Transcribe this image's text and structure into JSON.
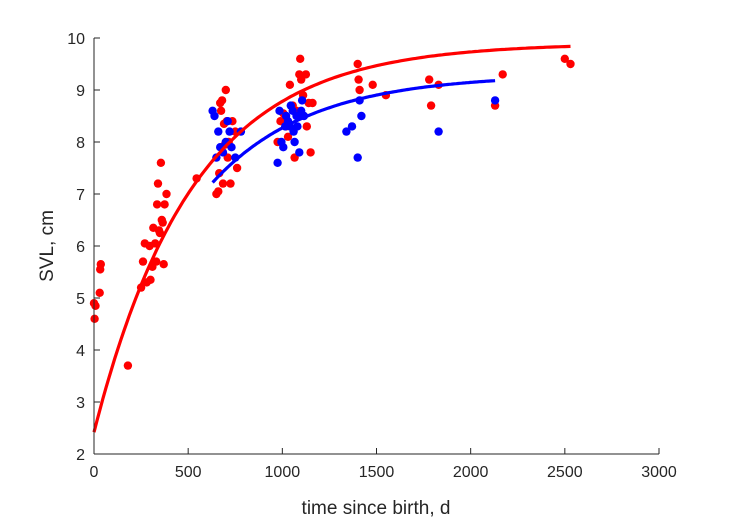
{
  "chart_data": {
    "type": "scatter",
    "xlabel": "time since birth, d",
    "ylabel": "SVL, cm",
    "xlim": [
      0,
      3000
    ],
    "ylim": [
      2,
      10
    ],
    "xticks": [
      "0",
      "500",
      "1000",
      "1500",
      "2000",
      "2500",
      "3000"
    ],
    "yticks": [
      "2",
      "3",
      "4",
      "5",
      "6",
      "7",
      "8",
      "9",
      "10"
    ],
    "grid": false,
    "legend": "none",
    "colors": {
      "red": "#ff0000",
      "blue": "#0000ff",
      "axis": "#262626"
    },
    "series": [
      {
        "color": "#ff0000",
        "kind": "points",
        "points": [
          [
            0,
            4.9
          ],
          [
            3,
            4.6
          ],
          [
            8,
            4.85
          ],
          [
            30,
            5.1
          ],
          [
            33,
            5.55
          ],
          [
            36,
            5.65
          ],
          [
            180,
            3.7
          ],
          [
            250,
            5.2
          ],
          [
            260,
            5.7
          ],
          [
            270,
            6.05
          ],
          [
            280,
            5.3
          ],
          [
            295,
            6.0
          ],
          [
            300,
            5.35
          ],
          [
            310,
            5.6
          ],
          [
            315,
            6.35
          ],
          [
            325,
            6.05
          ],
          [
            330,
            5.7
          ],
          [
            335,
            6.8
          ],
          [
            340,
            7.2
          ],
          [
            345,
            6.3
          ],
          [
            350,
            6.25
          ],
          [
            355,
            7.6
          ],
          [
            360,
            6.5
          ],
          [
            365,
            6.45
          ],
          [
            370,
            5.65
          ],
          [
            375,
            6.8
          ],
          [
            385,
            7.0
          ],
          [
            545,
            7.3
          ],
          [
            650,
            7.0
          ],
          [
            660,
            7.05
          ],
          [
            665,
            7.4
          ],
          [
            670,
            8.75
          ],
          [
            675,
            8.6
          ],
          [
            680,
            8.8
          ],
          [
            685,
            7.2
          ],
          [
            690,
            8.35
          ],
          [
            695,
            7.95
          ],
          [
            700,
            9.0
          ],
          [
            705,
            8.4
          ],
          [
            710,
            7.7
          ],
          [
            715,
            8.0
          ],
          [
            725,
            7.2
          ],
          [
            735,
            8.4
          ],
          [
            750,
            8.2
          ],
          [
            760,
            7.5
          ],
          [
            975,
            8.0
          ],
          [
            990,
            8.4
          ],
          [
            1005,
            8.55
          ],
          [
            1020,
            8.3
          ],
          [
            1030,
            8.1
          ],
          [
            1040,
            9.1
          ],
          [
            1055,
            8.7
          ],
          [
            1065,
            7.7
          ],
          [
            1075,
            8.6
          ],
          [
            1090,
            9.3
          ],
          [
            1095,
            9.6
          ],
          [
            1100,
            9.2
          ],
          [
            1110,
            8.9
          ],
          [
            1125,
            9.3
          ],
          [
            1130,
            8.3
          ],
          [
            1140,
            8.75
          ],
          [
            1150,
            7.8
          ],
          [
            1160,
            8.75
          ],
          [
            1400,
            9.5
          ],
          [
            1405,
            9.2
          ],
          [
            1410,
            9.0
          ],
          [
            1480,
            9.1
          ],
          [
            1550,
            8.9
          ],
          [
            1780,
            9.2
          ],
          [
            1790,
            8.7
          ],
          [
            1830,
            9.1
          ],
          [
            2130,
            8.7
          ],
          [
            2170,
            9.3
          ],
          [
            2500,
            9.6
          ],
          [
            2530,
            9.5
          ]
        ]
      },
      {
        "color": "#0000ff",
        "kind": "points",
        "points": [
          [
            630,
            8.6
          ],
          [
            640,
            8.5
          ],
          [
            650,
            7.7
          ],
          [
            660,
            8.2
          ],
          [
            670,
            7.9
          ],
          [
            685,
            7.8
          ],
          [
            700,
            8.0
          ],
          [
            710,
            8.4
          ],
          [
            720,
            8.2
          ],
          [
            730,
            7.9
          ],
          [
            750,
            7.7
          ],
          [
            780,
            8.2
          ],
          [
            975,
            7.6
          ],
          [
            985,
            8.6
          ],
          [
            995,
            8.0
          ],
          [
            1005,
            7.9
          ],
          [
            1015,
            8.3
          ],
          [
            1020,
            8.5
          ],
          [
            1030,
            8.4
          ],
          [
            1040,
            8.3
          ],
          [
            1045,
            8.7
          ],
          [
            1055,
            8.6
          ],
          [
            1060,
            8.2
          ],
          [
            1065,
            8.0
          ],
          [
            1075,
            8.5
          ],
          [
            1080,
            8.3
          ],
          [
            1090,
            7.8
          ],
          [
            1100,
            8.6
          ],
          [
            1105,
            8.8
          ],
          [
            1115,
            8.5
          ],
          [
            1340,
            8.2
          ],
          [
            1370,
            8.3
          ],
          [
            1400,
            7.7
          ],
          [
            1410,
            8.8
          ],
          [
            1420,
            8.5
          ],
          [
            1830,
            8.2
          ],
          [
            2130,
            8.8
          ]
        ]
      },
      {
        "color": "#ff0000",
        "kind": "curve",
        "model": {
          "Linf": 9.9,
          "L0": 2.42,
          "rate": 0.0019,
          "x_start": 0,
          "x_end": 2530
        }
      },
      {
        "color": "#0000ff",
        "kind": "curve",
        "model": {
          "Linf": 9.3,
          "L0": 2.42,
          "rate": 0.0019,
          "x_start": 630,
          "x_end": 2130
        }
      }
    ]
  }
}
